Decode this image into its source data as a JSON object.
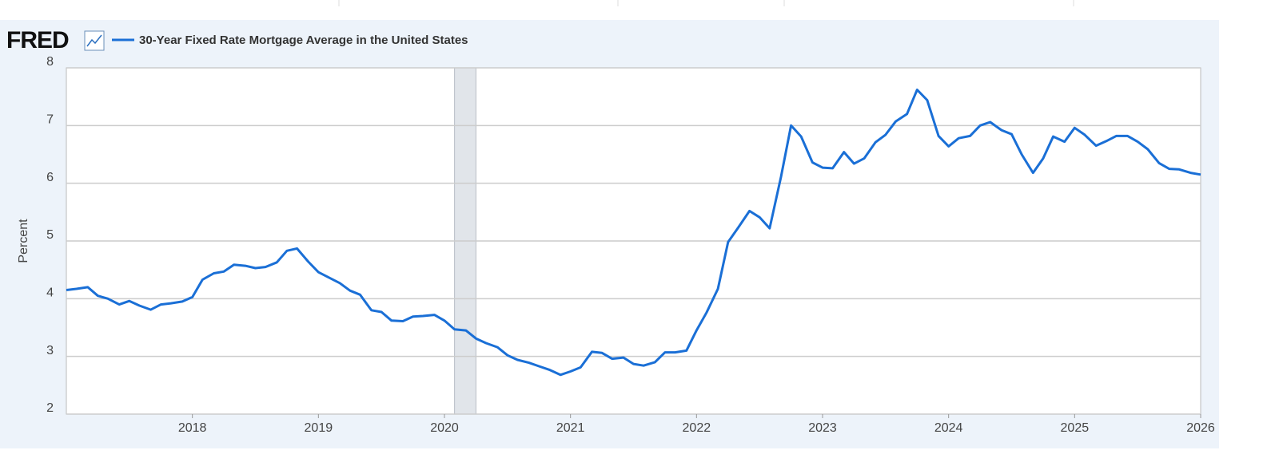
{
  "logo": "FRED",
  "chart_data": {
    "type": "line",
    "series": [
      {
        "name": "30-Year Fixed Rate Mortgage Average in the United States",
        "color": "#1a6fd6",
        "values": [
          4.15,
          4.17,
          4.2,
          4.05,
          4.0,
          3.9,
          3.96,
          3.88,
          3.81,
          3.9,
          3.92,
          3.95,
          4.03,
          4.33,
          4.44,
          4.47,
          4.59,
          4.57,
          4.53,
          4.55,
          4.63,
          4.83,
          4.87,
          4.64,
          4.46,
          4.37,
          4.27,
          4.14,
          4.07,
          3.8,
          3.77,
          3.62,
          3.61,
          3.69,
          3.7,
          3.72,
          3.62,
          3.47,
          3.45,
          3.31,
          3.23,
          3.16,
          3.02,
          2.94,
          2.89,
          2.83,
          2.77,
          2.68,
          2.74,
          2.81,
          3.08,
          3.06,
          2.96,
          2.98,
          2.87,
          2.84,
          2.9,
          3.07,
          3.07,
          3.1,
          3.45,
          3.76,
          4.17,
          4.98,
          5.23,
          5.52,
          5.41,
          5.22,
          6.11,
          7.0,
          6.81,
          6.36,
          6.27,
          6.26,
          6.54,
          6.34,
          6.43,
          6.71,
          6.84,
          7.07,
          7.2,
          7.62,
          7.44,
          6.82,
          6.64,
          6.78,
          6.82,
          7.0,
          7.06,
          6.92,
          6.85,
          6.5,
          6.18,
          6.43,
          6.81,
          6.72,
          6.96,
          6.84,
          6.65,
          6.73,
          6.82,
          6.82,
          6.72,
          6.59,
          6.35,
          6.25,
          6.24,
          6.18,
          6.15
        ]
      }
    ],
    "x": [
      2017,
      2017.08,
      2017.17,
      2017.25,
      2017.33,
      2017.42,
      2017.5,
      2017.58,
      2017.67,
      2017.75,
      2017.83,
      2017.92,
      2018,
      2018.08,
      2018.17,
      2018.25,
      2018.33,
      2018.42,
      2018.5,
      2018.58,
      2018.67,
      2018.75,
      2018.83,
      2018.92,
      2019,
      2019.08,
      2019.17,
      2019.25,
      2019.33,
      2019.42,
      2019.5,
      2019.58,
      2019.67,
      2019.75,
      2019.83,
      2019.92,
      2020,
      2020.08,
      2020.17,
      2020.25,
      2020.33,
      2020.42,
      2020.5,
      2020.58,
      2020.67,
      2020.75,
      2020.83,
      2020.92,
      2021,
      2021.08,
      2021.17,
      2021.25,
      2021.33,
      2021.42,
      2021.5,
      2021.58,
      2021.67,
      2021.75,
      2021.83,
      2021.92,
      2022,
      2022.08,
      2022.17,
      2022.25,
      2022.33,
      2022.42,
      2022.5,
      2022.58,
      2022.67,
      2022.75,
      2022.83,
      2022.92,
      2023,
      2023.08,
      2023.17,
      2023.25,
      2023.33,
      2023.42,
      2023.5,
      2023.58,
      2023.67,
      2023.75,
      2023.83,
      2023.92,
      2024,
      2024.08,
      2024.17,
      2024.25,
      2024.33,
      2024.42,
      2024.5,
      2024.58,
      2024.67,
      2024.75,
      2024.83,
      2024.92,
      2025,
      2025.08,
      2025.17,
      2025.25,
      2025.33,
      2025.42,
      2025.5,
      2025.58,
      2025.67,
      2025.75,
      2025.83,
      2025.92,
      2026
    ],
    "xlim": [
      2017,
      2026
    ],
    "xticks": [
      2018,
      2019,
      2020,
      2021,
      2022,
      2023,
      2024,
      2025,
      2026
    ],
    "ylim": [
      2,
      8
    ],
    "yticks": [
      2,
      3,
      4,
      5,
      6,
      7,
      8
    ],
    "ylabel": "Percent",
    "grid": true,
    "recession": [
      2020.08,
      2020.25
    ]
  }
}
